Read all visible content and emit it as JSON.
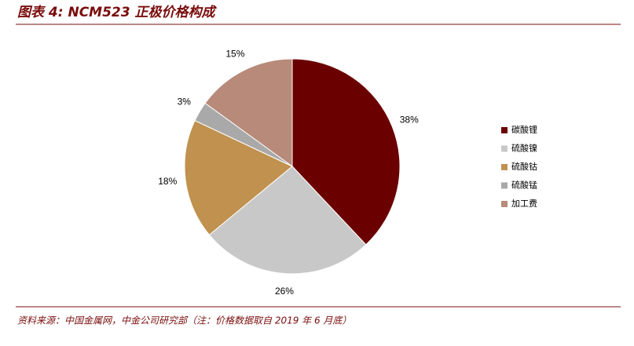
{
  "chart_data": {
    "type": "pie",
    "title": "图表 4: NCM523 正极价格构成",
    "categories": [
      "碳酸锂",
      "硫酸镍",
      "硫酸钴",
      "硫酸锰",
      "加工费"
    ],
    "values": [
      38,
      26,
      18,
      3,
      15
    ],
    "value_labels": [
      "38%",
      "26%",
      "18%",
      "3%",
      "15%"
    ],
    "colors": [
      "#6b0000",
      "#c8c8c8",
      "#c0914f",
      "#a9a9a9",
      "#b88a7a"
    ],
    "legend": "right",
    "source": "资料来源：中国金属网，中金公司研究部（注：价格数据取自 2019 年 6 月底）"
  }
}
